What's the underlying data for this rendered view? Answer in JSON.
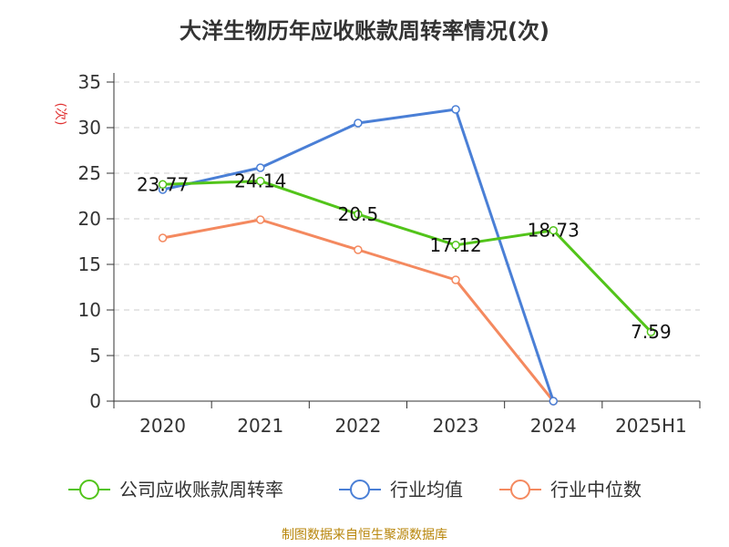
{
  "chart_data": {
    "type": "line",
    "title": "大洋生物历年应收账款周转率情况(次)",
    "ylabel": "(次)",
    "categories": [
      "2020",
      "2021",
      "2022",
      "2023",
      "2024",
      "2025H1"
    ],
    "ylim": [
      0,
      35
    ],
    "yticks": [
      0,
      5,
      10,
      15,
      20,
      25,
      30,
      35
    ],
    "grid": true,
    "legend_position": "bottom",
    "series": [
      {
        "name": "公司应收账款周转率",
        "color": "#52c41a",
        "values": [
          23.77,
          24.14,
          20.5,
          17.12,
          18.73,
          7.59
        ],
        "labels": [
          "23.77",
          "24.14",
          "20.5",
          "17.12",
          "18.73",
          "7.59"
        ]
      },
      {
        "name": "行业均值",
        "color": "#4a7fd6",
        "values": [
          23.2,
          25.6,
          30.5,
          32.0,
          0,
          null
        ]
      },
      {
        "name": "行业中位数",
        "color": "#f4895f",
        "values": [
          17.9,
          19.9,
          16.6,
          13.3,
          0,
          null
        ]
      }
    ],
    "source": "制图数据来自恒生聚源数据库"
  }
}
